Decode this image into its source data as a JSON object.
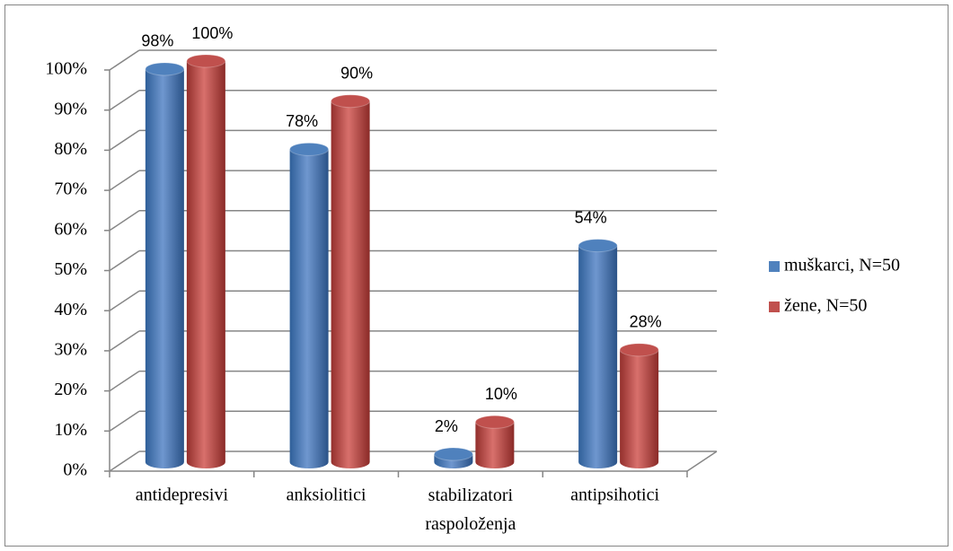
{
  "chart_data": {
    "type": "bar3d",
    "categories": [
      "antidepresivi",
      "anksiolitici",
      "stabilizatori raspoloženja",
      "antipsihotici"
    ],
    "series": [
      {
        "name": "muškarci, N=50",
        "color": "#4f81bd",
        "values": [
          98,
          78,
          2,
          54
        ],
        "value_labels": [
          "98%",
          "78%",
          "2%",
          "54%"
        ]
      },
      {
        "name": "žene, N=50",
        "color": "#c0504d",
        "values": [
          100,
          90,
          10,
          28
        ],
        "value_labels": [
          "100%",
          "90%",
          "10%",
          "28%"
        ]
      }
    ],
    "ylim": [
      0,
      100
    ],
    "yticks": [
      {
        "value": 0,
        "label": "0%"
      },
      {
        "value": 10,
        "label": "10%"
      },
      {
        "value": 20,
        "label": "20%"
      },
      {
        "value": 30,
        "label": "30%"
      },
      {
        "value": 40,
        "label": "40%"
      },
      {
        "value": 50,
        "label": "50%"
      },
      {
        "value": 60,
        "label": "60%"
      },
      {
        "value": 70,
        "label": "70%"
      },
      {
        "value": 80,
        "label": "80%"
      },
      {
        "value": 90,
        "label": "90%"
      },
      {
        "value": 100,
        "label": "100%"
      }
    ],
    "grid": true,
    "legend": "right"
  }
}
